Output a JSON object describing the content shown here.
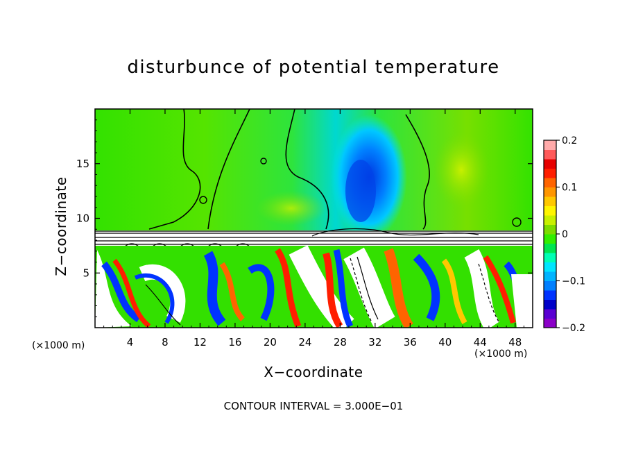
{
  "chart_data": {
    "type": "heatmap",
    "title": "disturbunce of potential temperature",
    "xlabel": "X−coordinate",
    "ylabel": "Z−coordinate",
    "x_unit_label": "(×1000 m)",
    "xlim": [
      0,
      50
    ],
    "ylim": [
      0,
      20
    ],
    "x_ticks": [
      4,
      8,
      12,
      16,
      20,
      24,
      28,
      32,
      36,
      40,
      44,
      48
    ],
    "y_ticks": [
      5,
      10,
      15
    ],
    "colorbar": {
      "range": [
        -0.2,
        0.2
      ],
      "tick_values": [
        -0.2,
        -0.1,
        0,
        0.1,
        0.2
      ],
      "tick_labels": [
        "−0.2",
        "−0.1",
        "0",
        "0.1",
        "0.2"
      ],
      "colors": [
        "#8b00c8",
        "#5a00d2",
        "#0000c8",
        "#0033ff",
        "#0080ff",
        "#00b4ff",
        "#00e6ff",
        "#00ffb4",
        "#00e650",
        "#33ee00",
        "#7ddc00",
        "#c8f000",
        "#fff500",
        "#ffc800",
        "#ff9600",
        "#ff6400",
        "#ff1e00",
        "#e60000",
        "#ff5a5a",
        "#ffaaaa"
      ]
    },
    "footnote": "CONTOUR INTERVAL = 3.000E−01"
  }
}
